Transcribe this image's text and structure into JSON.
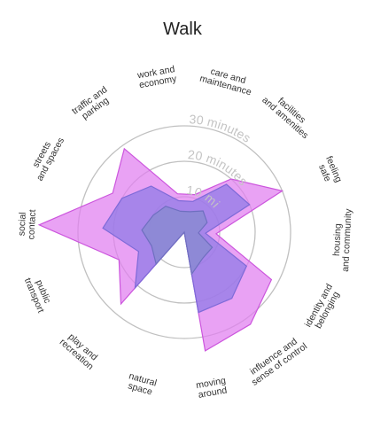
{
  "title": "Walk",
  "chart_data": {
    "type": "radar",
    "title": "Walk",
    "categories": [
      "work and economy",
      "care and maintenance",
      "facilities and amenities",
      "feeling safe",
      "housing and community",
      "identity and belonging",
      "influence and sense of control",
      "moving around",
      "natural space",
      "play and recreation",
      "public transport",
      "social contact",
      "streets and spaces",
      "traffic and parking"
    ],
    "category_lines": [
      [
        "work and",
        "economy"
      ],
      [
        "care and",
        "maintenance"
      ],
      [
        "facilities",
        "and amenities"
      ],
      [
        "feeling",
        "safe"
      ],
      [
        "housing",
        "and community"
      ],
      [
        "identity and",
        "belonging"
      ],
      [
        "influence and",
        "sense of control"
      ],
      [
        "moving",
        "around"
      ],
      [
        "natural",
        "space"
      ],
      [
        "play and",
        "recreation"
      ],
      [
        "public",
        "transport"
      ],
      [
        "social",
        "contact"
      ],
      [
        "streets",
        "and spaces"
      ],
      [
        "traffic and",
        "parking"
      ]
    ],
    "rings": [
      {
        "value": 10,
        "label": "10 minutes"
      },
      {
        "value": 20,
        "label": "20 minutes"
      },
      {
        "value": 30,
        "label": "30 minutes"
      }
    ],
    "rmax": 40,
    "series": [
      {
        "values": [
          11,
          11,
          20,
          30,
          9,
          28,
          32,
          34,
          0,
          27,
          20,
          41,
          23,
          29
        ],
        "color": "#e07ef0",
        "stroke": "#cc55dd",
        "opacity": 0.72
      },
      {
        "values": [
          9,
          9,
          18,
          20,
          6,
          20,
          23,
          23,
          0,
          21,
          14,
          23,
          20,
          16
        ],
        "color": "#8e7ae6",
        "stroke": "#7e6ad8",
        "opacity": 0.72
      },
      {
        "values": [
          6,
          6,
          8,
          7,
          4,
          9,
          9,
          12,
          0,
          12,
          10,
          12,
          10,
          9
        ],
        "color": "#8a8ad2",
        "stroke": "#6f6fc0",
        "opacity": 0.85
      }
    ],
    "grid": true,
    "legend": "none"
  },
  "colors": {
    "ring": "#c0c0c0",
    "ring_label": "#c4c4c4",
    "category_label": "#333333"
  }
}
